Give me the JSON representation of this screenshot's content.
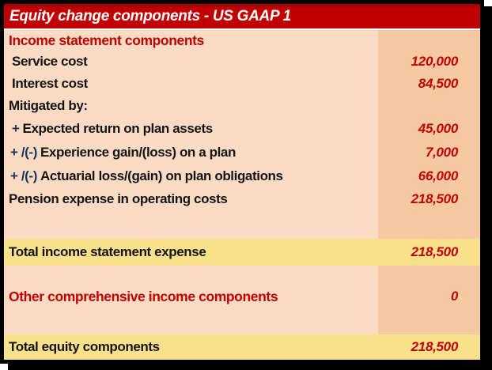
{
  "header": {
    "title": "Equity change components - US GAAP 1"
  },
  "colors": {
    "title_bar_bg": "#c10101",
    "title_text": "#ffffff",
    "body_bg": "#fcdbc5",
    "value_column_bg": "#f6c9a3",
    "total_row_bg": "#fce18c",
    "value_text": "#c00000",
    "section_text": "#c00000",
    "label_text": "#141414",
    "prefix_text": "#17375e",
    "border": "#000000"
  },
  "table": {
    "rows": [
      {
        "label": "Income statement components",
        "value": ""
      },
      {
        "label": "Service cost",
        "value": "120,000"
      },
      {
        "label": "Interest cost",
        "value": "84,500"
      },
      {
        "label": "Mitigated by:",
        "value": ""
      },
      {
        "prefix": "+",
        "label": "Expected return on plan assets",
        "value": "45,000"
      },
      {
        "prefix": "+ /(-)",
        "label": "Experience gain/(loss) on a plan",
        "value": "7,000"
      },
      {
        "prefix": "+ /(-)",
        "label": "Actuarial loss/(gain) on plan obligations",
        "value": "66,000"
      },
      {
        "label": "Pension expense in operating costs",
        "value": "218,500"
      },
      {
        "label": "",
        "value": ""
      },
      {
        "label": "Total income statement expense",
        "value": "218,500"
      },
      {
        "label": "",
        "value": ""
      },
      {
        "label": "Other comprehensive income components",
        "value": "0"
      },
      {
        "label": "",
        "value": ""
      },
      {
        "label": "Total equity components",
        "value": "218,500"
      }
    ]
  }
}
